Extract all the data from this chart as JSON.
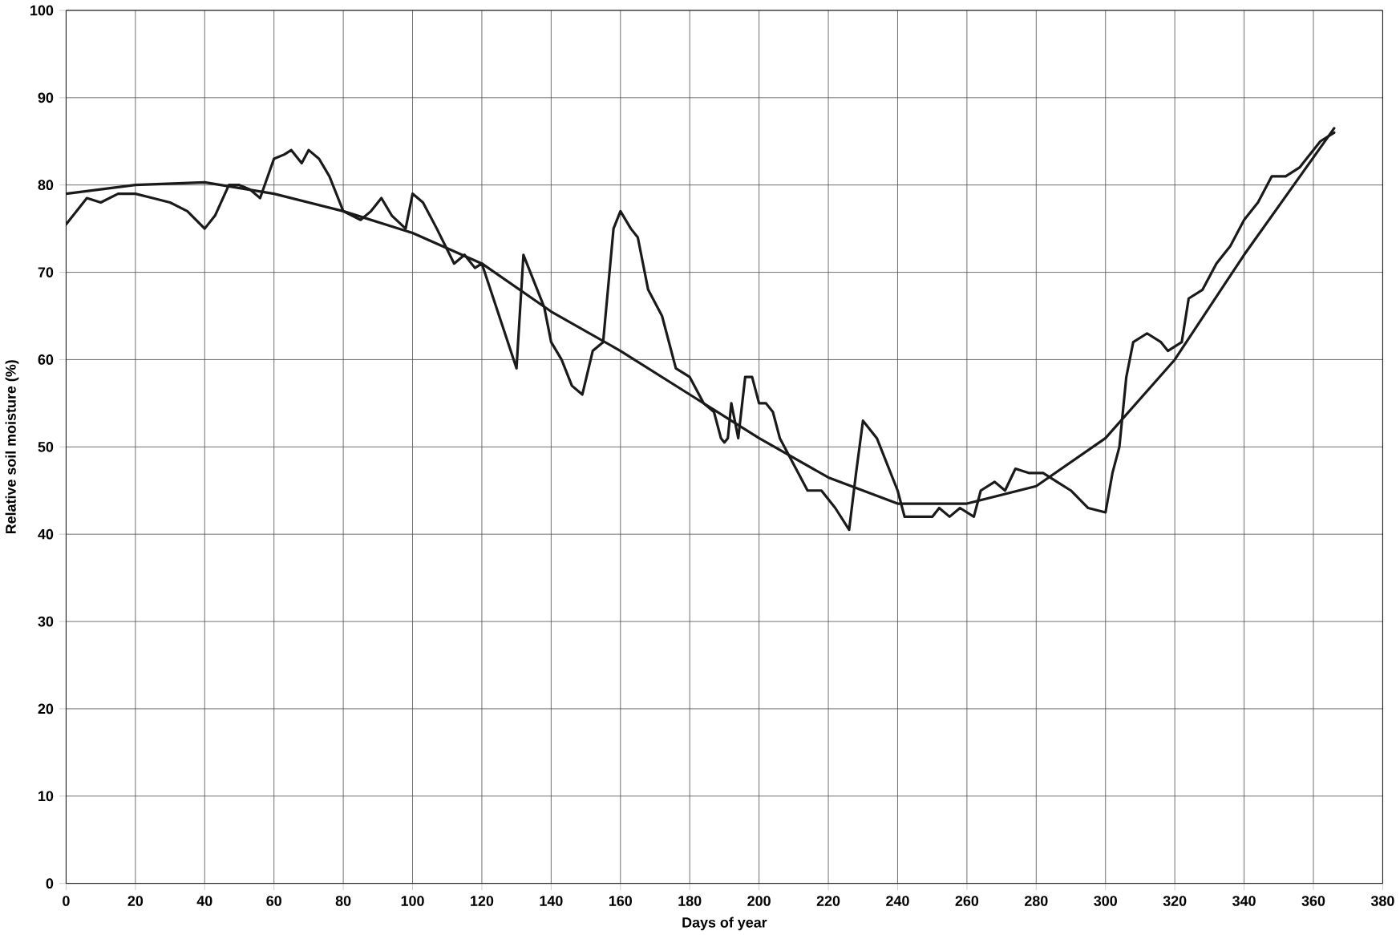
{
  "chart_data": {
    "type": "line",
    "xlabel": "Days of year",
    "ylabel": "Relative soil moisture (%)",
    "xlim": [
      0,
      380
    ],
    "ylim": [
      0,
      100
    ],
    "xticks": [
      0,
      20,
      40,
      60,
      80,
      100,
      120,
      140,
      160,
      180,
      200,
      220,
      240,
      260,
      280,
      300,
      320,
      340,
      360,
      380
    ],
    "yticks": [
      0,
      10,
      20,
      30,
      40,
      50,
      60,
      70,
      80,
      90,
      100
    ],
    "grid": true,
    "marker": "none",
    "line_style": "solid",
    "series": [
      {
        "color": "#1a1a1a",
        "x": [
          0,
          3,
          6,
          10,
          15,
          20,
          25,
          30,
          35,
          40,
          43,
          47,
          50,
          53,
          56,
          60,
          63,
          65,
          68,
          70,
          73,
          76,
          80,
          85,
          88,
          91,
          94,
          98,
          100,
          103,
          107,
          112,
          115,
          118,
          120,
          125,
          130,
          132,
          135,
          138,
          140,
          143,
          146,
          149,
          152,
          155,
          158,
          160,
          163,
          165,
          168,
          172,
          176,
          180,
          184,
          187,
          189,
          190,
          191,
          192,
          194,
          196,
          198,
          200,
          202,
          204,
          206,
          210,
          214,
          218,
          222,
          226,
          228,
          230,
          234,
          240,
          242,
          246,
          250,
          252,
          255,
          258,
          262,
          264,
          268,
          271,
          274,
          278,
          282,
          286,
          290,
          295,
          300,
          302,
          304,
          306,
          308,
          312,
          316,
          318,
          322,
          324,
          328,
          332,
          336,
          340,
          344,
          348,
          352,
          356,
          358,
          362,
          366
        ],
        "values": [
          75.5,
          77,
          78.5,
          78,
          79,
          79,
          78.5,
          78,
          77,
          75,
          76.5,
          80,
          80,
          79.5,
          78.5,
          83,
          83.5,
          84,
          82.5,
          84,
          83,
          81,
          77,
          76,
          77,
          78.5,
          76.5,
          75,
          79,
          78,
          75,
          71,
          72,
          70.5,
          71,
          65,
          59,
          72,
          69,
          66,
          62,
          60,
          57,
          56,
          61,
          62,
          75,
          77,
          75,
          74,
          68,
          65,
          59,
          58,
          55,
          54,
          51,
          50.5,
          51,
          55,
          51,
          58,
          58,
          55,
          55,
          54,
          51,
          48,
          45,
          45,
          43,
          40.5,
          47,
          53,
          51,
          45,
          42,
          42,
          42,
          43,
          42,
          43,
          42,
          45,
          46,
          45,
          47.5,
          47,
          47,
          46,
          45,
          43,
          42.5,
          47,
          50,
          58,
          62,
          63,
          62,
          61,
          62,
          67,
          68,
          71,
          73,
          76,
          78,
          81,
          81,
          82,
          83,
          85,
          86
        ]
      },
      {
        "color": "#1a1a1a",
        "x": [
          0,
          20,
          40,
          60,
          80,
          100,
          120,
          140,
          160,
          180,
          200,
          220,
          240,
          260,
          280,
          300,
          320,
          340,
          366
        ],
        "values": [
          79,
          80,
          80.3,
          79,
          77,
          74.5,
          71,
          65.5,
          61,
          56,
          51,
          46.5,
          43.5,
          43.5,
          45.5,
          51,
          60,
          72,
          86.5
        ]
      }
    ]
  }
}
